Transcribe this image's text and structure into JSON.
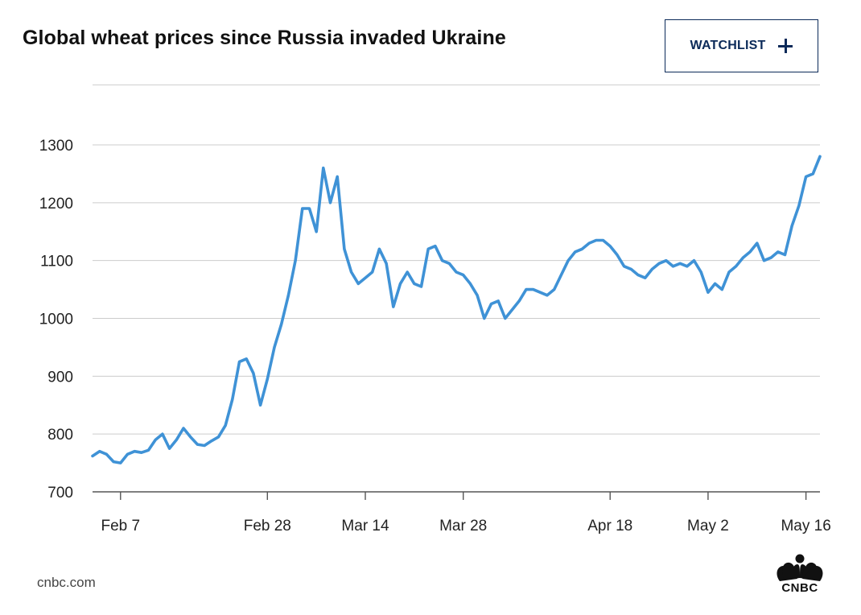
{
  "header": {
    "title": "Global wheat prices since Russia invaded Ukraine",
    "watchlist_label": "WATCHLIST",
    "watchlist_icon": "plus-icon"
  },
  "footer": {
    "source": "cnbc.com",
    "logo_text": "CNBC",
    "logo_icon": "peacock-icon"
  },
  "colors": {
    "line": "#3f92d6",
    "gridline": "#cccccc",
    "button_border": "#0b2a59",
    "button_text": "#0b2a59"
  },
  "chart_data": {
    "type": "line",
    "title": "Global wheat prices since Russia invaded Ukraine",
    "xlabel": "",
    "ylabel": "",
    "ylim": [
      700,
      1300
    ],
    "yticks": [
      700,
      800,
      900,
      1000,
      1100,
      1200,
      1300
    ],
    "grid": true,
    "xlim": [
      "2022-02-03",
      "2022-05-18"
    ],
    "xticks": [
      {
        "date": "2022-02-07",
        "label": "Feb 7"
      },
      {
        "date": "2022-02-28",
        "label": "Feb 28"
      },
      {
        "date": "2022-03-14",
        "label": "Mar 14"
      },
      {
        "date": "2022-03-28",
        "label": "Mar 28"
      },
      {
        "date": "2022-04-18",
        "label": "Apr 18"
      },
      {
        "date": "2022-05-02",
        "label": "May 2"
      },
      {
        "date": "2022-05-16",
        "label": "May 16"
      }
    ],
    "series": [
      {
        "x": [
          "2022-02-03",
          "2022-02-04",
          "2022-02-05",
          "2022-02-06",
          "2022-02-07",
          "2022-02-08",
          "2022-02-09",
          "2022-02-10",
          "2022-02-11",
          "2022-02-12",
          "2022-02-13",
          "2022-02-14",
          "2022-02-15",
          "2022-02-16",
          "2022-02-17",
          "2022-02-18",
          "2022-02-19",
          "2022-02-20",
          "2022-02-21",
          "2022-02-22",
          "2022-02-23",
          "2022-02-24",
          "2022-02-25",
          "2022-02-26",
          "2022-02-27",
          "2022-02-28",
          "2022-03-01",
          "2022-03-02",
          "2022-03-03",
          "2022-03-04",
          "2022-03-05",
          "2022-03-06",
          "2022-03-07",
          "2022-03-08",
          "2022-03-09",
          "2022-03-10",
          "2022-03-11",
          "2022-03-12",
          "2022-03-13",
          "2022-03-14",
          "2022-03-15",
          "2022-03-16",
          "2022-03-17",
          "2022-03-18",
          "2022-03-19",
          "2022-03-20",
          "2022-03-21",
          "2022-03-22",
          "2022-03-23",
          "2022-03-24",
          "2022-03-25",
          "2022-03-26",
          "2022-03-27",
          "2022-03-28",
          "2022-03-29",
          "2022-03-30",
          "2022-03-31",
          "2022-04-01",
          "2022-04-02",
          "2022-04-03",
          "2022-04-04",
          "2022-04-05",
          "2022-04-06",
          "2022-04-07",
          "2022-04-08",
          "2022-04-09",
          "2022-04-10",
          "2022-04-11",
          "2022-04-12",
          "2022-04-13",
          "2022-04-14",
          "2022-04-15",
          "2022-04-16",
          "2022-04-17",
          "2022-04-18",
          "2022-04-19",
          "2022-04-20",
          "2022-04-21",
          "2022-04-22",
          "2022-04-23",
          "2022-04-24",
          "2022-04-25",
          "2022-04-26",
          "2022-04-27",
          "2022-04-28",
          "2022-04-29",
          "2022-04-30",
          "2022-05-01",
          "2022-05-02",
          "2022-05-03",
          "2022-05-04",
          "2022-05-05",
          "2022-05-06",
          "2022-05-07",
          "2022-05-08",
          "2022-05-09",
          "2022-05-10",
          "2022-05-11",
          "2022-05-12",
          "2022-05-13",
          "2022-05-14",
          "2022-05-15",
          "2022-05-16",
          "2022-05-17",
          "2022-05-18"
        ],
        "values": [
          762,
          770,
          765,
          752,
          750,
          765,
          770,
          768,
          772,
          790,
          800,
          775,
          790,
          810,
          795,
          782,
          780,
          788,
          795,
          815,
          860,
          925,
          930,
          905,
          850,
          895,
          950,
          990,
          1040,
          1100,
          1190,
          1190,
          1150,
          1260,
          1200,
          1245,
          1120,
          1080,
          1060,
          1070,
          1080,
          1120,
          1095,
          1020,
          1060,
          1080,
          1060,
          1055,
          1120,
          1125,
          1100,
          1095,
          1080,
          1075,
          1060,
          1040,
          1000,
          1025,
          1030,
          1000,
          1015,
          1030,
          1050,
          1050,
          1045,
          1040,
          1050,
          1075,
          1100,
          1115,
          1120,
          1130,
          1135,
          1135,
          1125,
          1110,
          1090,
          1085,
          1075,
          1070,
          1085,
          1095,
          1100,
          1090,
          1095,
          1090,
          1100,
          1080,
          1045,
          1060,
          1050,
          1080,
          1090,
          1105,
          1115,
          1130,
          1100,
          1105,
          1115,
          1110,
          1160,
          1195,
          1245,
          1250,
          1280
        ]
      }
    ]
  }
}
